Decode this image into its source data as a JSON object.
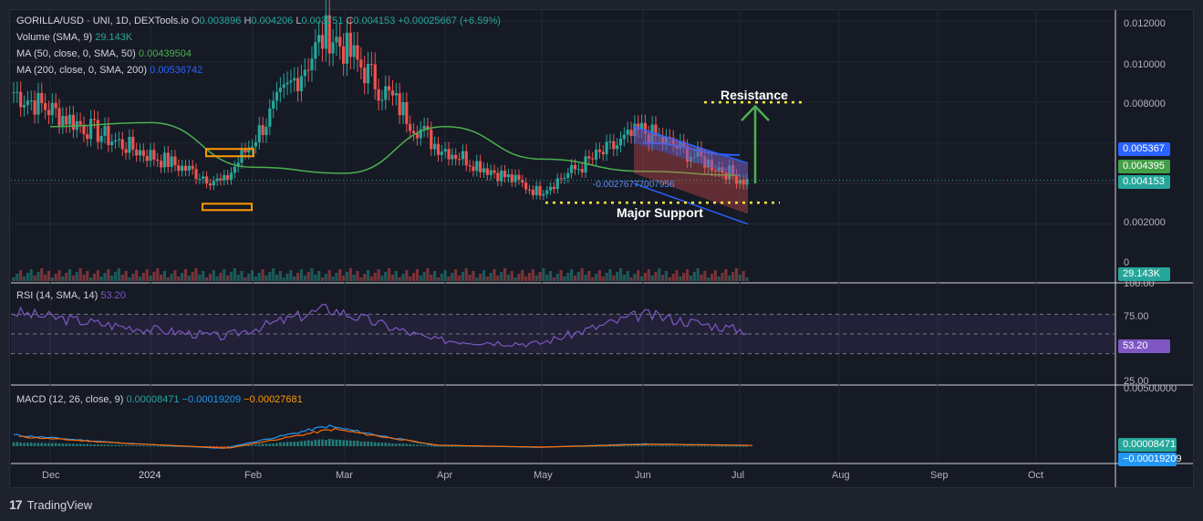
{
  "header": {
    "symbol": "GORILLA/USD · UNI, 1D, DEXTools.io",
    "open_label": "O",
    "open": "0.003896",
    "high_label": "H",
    "high": "0.004206",
    "low_label": "L",
    "low": "0.003751",
    "close_label": "C",
    "close": "0.004153",
    "change": "+0.00025667 (+6.59%)"
  },
  "indicators": {
    "volume": {
      "label": "Volume (SMA, 9)",
      "value": "29.143K"
    },
    "ma50": {
      "label": "MA (50, close, 0, SMA, 50)",
      "value": "0.00439504"
    },
    "ma200": {
      "label": "MA (200, close, 0, SMA, 200)",
      "value": "0.00536742"
    },
    "rsi": {
      "label": "RSI (14, SMA, 14)",
      "value": "53.20"
    },
    "macd": {
      "label": "MACD (12, 26, close, 9)",
      "v1": "0.00008471",
      "v2": "−0.00019209",
      "v3": "−0.00027681"
    }
  },
  "price_tags": {
    "ma200": "0.005367",
    "ma50": "0.004395",
    "close": "0.004153",
    "volume": "29.143K",
    "rsi": "53.20",
    "macd": "0.00008471",
    "signal": "−0.00019209"
  },
  "axis": {
    "price_ticks": [
      "0.012000",
      "0.010000",
      "0.008000",
      "0.002000",
      "0"
    ],
    "rsi_ticks": [
      "100.00",
      "75.00",
      "25.00"
    ],
    "macd_ticks": [
      "0.00500000"
    ],
    "x_ticks": [
      "Dec",
      "2024",
      "Feb",
      "Mar",
      "Apr",
      "May",
      "Jun",
      "Jul",
      "Aug",
      "Sep",
      "Oct"
    ]
  },
  "annotations": {
    "resistance": "Resistance",
    "support": "Major Support",
    "channel_value": "-0.00276777007956"
  },
  "colors": {
    "up": "#26a69a",
    "down": "#ef5350",
    "ma50": "#4caf50",
    "ma200": "#2962ff",
    "rsi": "#7e57c2",
    "macd": "#2196f3",
    "signal": "#ff6d00",
    "annotation": "#ffeb3b"
  },
  "footer": {
    "brand": "TradingView"
  },
  "chart_data": {
    "type": "line",
    "title": "GORILLA/USD · UNI, 1D, DEXTools.io",
    "x": [
      "Dec",
      "2024",
      "Feb",
      "Mar",
      "Apr",
      "May",
      "Jun",
      "Jul"
    ],
    "ylim": [
      0,
      0.0125
    ],
    "series": [
      {
        "name": "Close",
        "values": [
          0.0085,
          0.006,
          0.004,
          0.0115,
          0.006,
          0.0036,
          0.0066,
          0.0041
        ]
      },
      {
        "name": "MA (50, close, 0, SMA, 50)",
        "values": [
          0.0068,
          0.007,
          0.0048,
          0.0045,
          0.0068,
          0.0052,
          0.0046,
          0.0044
        ]
      },
      {
        "name": "MA (200, close, 0, SMA, 200)",
        "values": [
          null,
          null,
          null,
          null,
          null,
          null,
          0.006,
          0.0054
        ]
      }
    ],
    "rsi": {
      "values": [
        72,
        58,
        47,
        76,
        44,
        40,
        70,
        53
      ],
      "ylim": [
        0,
        100
      ]
    },
    "macd": {
      "values": [
        0.001,
        0.0003,
        -0.0002,
        0.0018,
        0.0001,
        -0.0001,
        0.0002,
        8e-05
      ]
    },
    "grid": true,
    "legend": "top-left"
  }
}
